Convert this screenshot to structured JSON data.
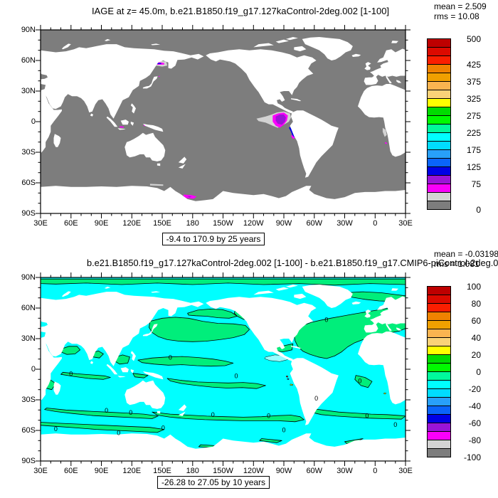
{
  "figure": {
    "background": "#FFFFFF",
    "contour_label": "0",
    "axis": {
      "x_tick_labels": [
        "30E",
        "60E",
        "90E",
        "120E",
        "150E",
        "180",
        "150W",
        "120W",
        "90W",
        "60W",
        "30W",
        "0",
        "30E"
      ],
      "y_tick_labels": [
        "90N",
        "60N",
        "30N",
        "0",
        "30S",
        "60S",
        "90S"
      ],
      "major_tick_deg": 30,
      "minor_tick_deg": 10
    }
  },
  "palette": [
    "#BE0000",
    "#DC0A00",
    "#FA1E00",
    "#F08200",
    "#F0A000",
    "#FAB450",
    "#FAD278",
    "#FFFF00",
    "#00DC00",
    "#00FA00",
    "#00FA9B",
    "#00FFFF",
    "#00DCFF",
    "#28A0FA",
    "#0A64FA",
    "#0000E6",
    "#9B14D7",
    "#FA00FA",
    "#D3D3D3",
    "#7D7D7D"
  ],
  "map_colors": {
    "panel_top": {
      "ocean_young": "#7D7D7D",
      "age_25_50": "#D3D3D3",
      "age_50_75": "#FA00FA",
      "age_75_100": "#9B14D7",
      "age_100_125": "#0000E6",
      "land": "#FFFFFF"
    },
    "panel_bottom": {
      "positive_0_10": "#00EE7B",
      "negative_10_0": "#00FFFF",
      "negative_strong": "#96FFFF",
      "positive_yellow": "#FFFF00",
      "spot_red": "#DC0A00",
      "spot_blue": "#0A64FA",
      "land": "#FFFFFF",
      "contour": "#000000"
    }
  },
  "chart_data": [
    {
      "type": "heatmap",
      "panel": "top",
      "title": "IAGE at z=  45.0m, b.e21.B1850.f19_g17.127kaControl-2deg.002 [1-100]",
      "stats": {
        "mean_label": "mean = 2.509",
        "rms_label": "rms = 10.08",
        "mean": 2.509,
        "rms": 10.08
      },
      "range_label": "-9.4 to 170.9 by 25 years",
      "data_min": -9.4,
      "data_max": 170.9,
      "contour_interval": 25,
      "units": "years",
      "projection": "equirectangular",
      "lon_span": [
        "30E",
        "30E (wrap 360)"
      ],
      "lat_span": [
        "90S",
        "90N"
      ],
      "colorbar": {
        "min": 0,
        "max": 500,
        "step": 25,
        "n_boxes": 20,
        "tick_labels": [
          "500",
          "425",
          "375",
          "325",
          "275",
          "225",
          "175",
          "125",
          "75",
          "0"
        ],
        "tick_boundary_index": [
          0,
          3,
          5,
          7,
          9,
          11,
          13,
          15,
          17,
          20
        ]
      },
      "description": "Ideal ocean age at 45 m: nearly all ocean 0-25 yr (dark gray), 25-50 yr light gray halos; older water (50-125 yr: magenta/purple/blue) off Peru in eastern equatorial Pacific, in northern Sea of Okhotsk and Ross Sea; land white"
    },
    {
      "type": "heatmap",
      "panel": "bottom",
      "title": "b.e21.B1850.f19_g17.127kaControl-2deg.002 [1-100] - b.e21.B1850.f19_g17.CMIP6-piControl-2deg.001",
      "stats": {
        "mean_label": "mean = -0.03198",
        "rms_label": "rms = 1.081",
        "mean": -0.03198,
        "rms": 1.081
      },
      "range_label": "-26.28 to 27.05 by 10 years",
      "data_min": -26.28,
      "data_max": 27.05,
      "contour_interval": 10,
      "units": "years",
      "projection": "equirectangular",
      "lon_span": [
        "30E",
        "30E (wrap 360)"
      ],
      "lat_span": [
        "90S",
        "90N"
      ],
      "colorbar": {
        "min": -100,
        "max": 100,
        "step": 10,
        "n_boxes": 20,
        "tick_labels": [
          "100",
          "80",
          "60",
          "40",
          "20",
          "0",
          "-20",
          "-40",
          "-60",
          "-80",
          "-100"
        ],
        "tick_boundary_index": [
          0,
          2,
          4,
          6,
          8,
          10,
          12,
          14,
          16,
          18,
          20
        ]
      },
      "description": "Ideal-age difference: mostly within ±10 yr; positive patches green, negative patches cyan, separated by labelled 0 contours; land white"
    }
  ]
}
